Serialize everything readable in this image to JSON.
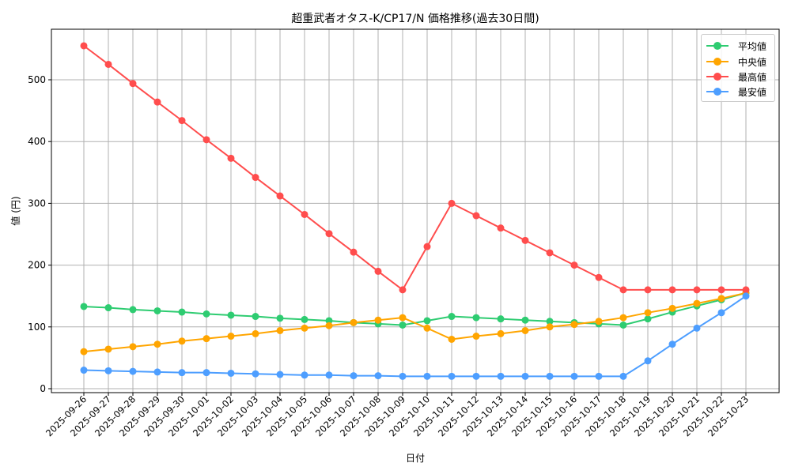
{
  "chart_data": {
    "type": "line",
    "title": "超重武者オタス-K/CP17/N 価格推移(過去30日間)",
    "xlabel": "日付",
    "ylabel": "値 (円)",
    "ylim": [
      -7,
      580
    ],
    "yticks": [
      0,
      100,
      200,
      300,
      400,
      500
    ],
    "grid": true,
    "legend_position": "upper right",
    "x": [
      "2025-09-26",
      "2025-09-27",
      "2025-09-28",
      "2025-09-29",
      "2025-09-30",
      "2025-10-01",
      "2025-10-02",
      "2025-10-03",
      "2025-10-04",
      "2025-10-05",
      "2025-10-06",
      "2025-10-07",
      "2025-10-08",
      "2025-10-09",
      "2025-10-10",
      "2025-10-11",
      "2025-10-12",
      "2025-10-13",
      "2025-10-14",
      "2025-10-15",
      "2025-10-16",
      "2025-10-17",
      "2025-10-18",
      "2025-10-19",
      "2025-10-20",
      "2025-10-21",
      "2025-10-22",
      "2025-10-23"
    ],
    "series": [
      {
        "name": "平均値",
        "color": "#2ecc71",
        "values": [
          133,
          131,
          128,
          126,
          124,
          121,
          119,
          117,
          114,
          112,
          110,
          107,
          105,
          103,
          110,
          117,
          115,
          113,
          111,
          109,
          107,
          105,
          103,
          113,
          124,
          134,
          144,
          155
        ]
      },
      {
        "name": "中央値",
        "color": "#ffa500",
        "values": [
          60,
          64,
          68,
          72,
          77,
          81,
          85,
          89,
          94,
          98,
          102,
          107,
          111,
          115,
          98,
          80,
          85,
          89,
          94,
          100,
          104,
          109,
          115,
          123,
          130,
          138,
          146,
          155
        ]
      },
      {
        "name": "最高値",
        "color": "#ff4d4d",
        "values": [
          555,
          525,
          494,
          464,
          434,
          403,
          373,
          342,
          312,
          282,
          251,
          221,
          190,
          160,
          230,
          300,
          280,
          260,
          240,
          220,
          200,
          180,
          160,
          160,
          160,
          160,
          160,
          160
        ]
      },
      {
        "name": "最安値",
        "color": "#4d9eff",
        "values": [
          30,
          29,
          28,
          27,
          26,
          26,
          25,
          24,
          23,
          22,
          22,
          21,
          21,
          20,
          20,
          20,
          20,
          20,
          20,
          20,
          20,
          20,
          20,
          45,
          72,
          98,
          123,
          150
        ]
      }
    ]
  }
}
